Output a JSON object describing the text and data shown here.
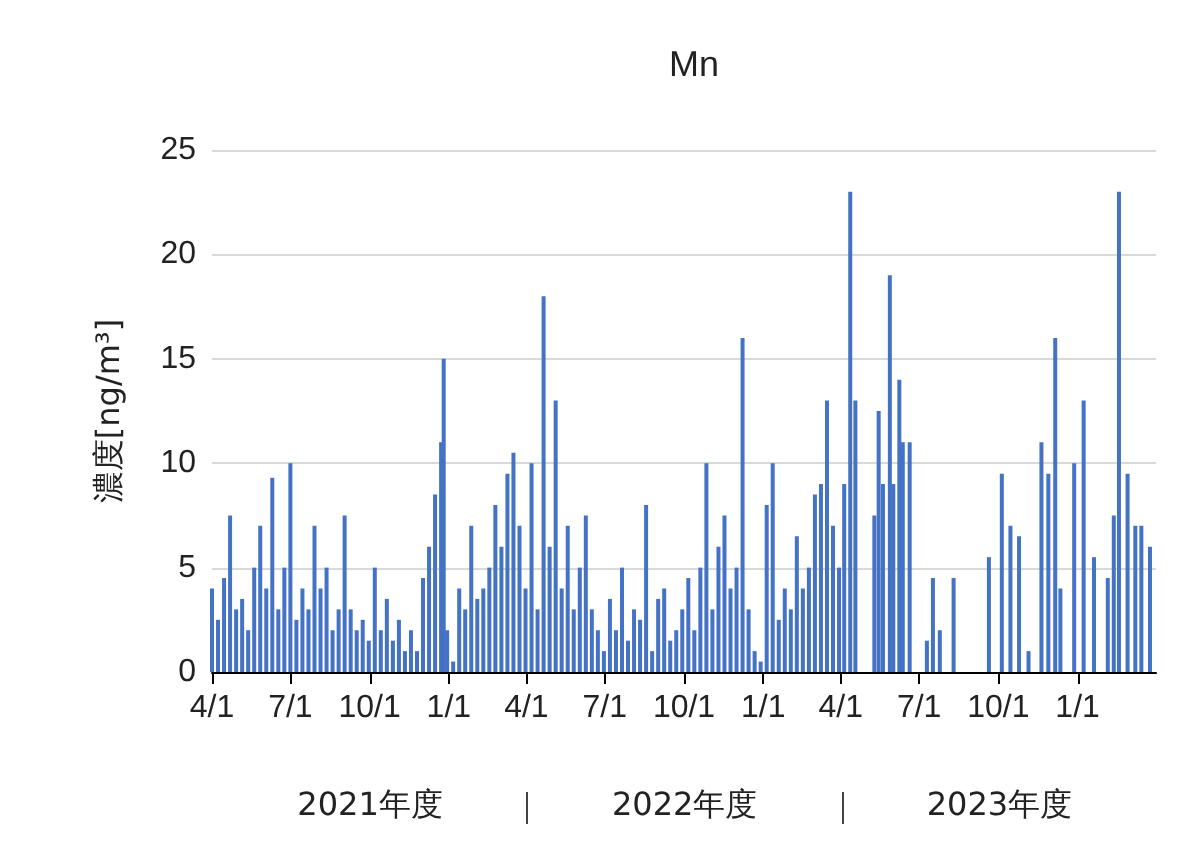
{
  "chart_data": {
    "type": "bar",
    "title": "Mn",
    "ylabel": "濃度[ng/m³]",
    "color": "#4472c4",
    "grid": "y",
    "ylim": [
      0,
      25
    ],
    "yticks": [
      0,
      5,
      10,
      15,
      20,
      25
    ],
    "xlim": [
      "2021-04-01",
      "2024-04-01"
    ],
    "xticks": [
      {
        "value": "2021-04-01",
        "label": "4/1"
      },
      {
        "value": "2021-07-01",
        "label": "7/1"
      },
      {
        "value": "2021-10-01",
        "label": "10/1"
      },
      {
        "value": "2022-01-01",
        "label": "1/1"
      },
      {
        "value": "2022-04-01",
        "label": "4/1"
      },
      {
        "value": "2022-07-01",
        "label": "7/1"
      },
      {
        "value": "2022-10-01",
        "label": "10/1"
      },
      {
        "value": "2023-01-01",
        "label": "1/1"
      },
      {
        "value": "2023-04-01",
        "label": "4/1"
      },
      {
        "value": "2023-07-01",
        "label": "7/1"
      },
      {
        "value": "2023-10-01",
        "label": "10/1"
      },
      {
        "value": "2024-01-01",
        "label": "1/1"
      }
    ],
    "annotations": [
      "2021年度",
      "2022年度",
      "2023年度"
    ],
    "x": [
      "2021-04-01",
      "2021-04-08",
      "2021-04-15",
      "2021-04-22",
      "2021-04-29",
      "2021-05-06",
      "2021-05-13",
      "2021-05-20",
      "2021-05-27",
      "2021-06-03",
      "2021-06-10",
      "2021-06-17",
      "2021-06-24",
      "2021-07-01",
      "2021-07-08",
      "2021-07-15",
      "2021-07-22",
      "2021-07-29",
      "2021-08-05",
      "2021-08-12",
      "2021-08-19",
      "2021-08-26",
      "2021-09-02",
      "2021-09-09",
      "2021-09-16",
      "2021-09-23",
      "2021-09-30",
      "2021-10-07",
      "2021-10-14",
      "2021-10-21",
      "2021-10-28",
      "2021-11-04",
      "2021-11-11",
      "2021-11-18",
      "2021-11-25",
      "2021-12-02",
      "2021-12-09",
      "2021-12-16",
      "2021-12-23",
      "2021-12-26",
      "2021-12-30",
      "2022-01-06",
      "2022-01-13",
      "2022-01-20",
      "2022-01-27",
      "2022-02-03",
      "2022-02-10",
      "2022-02-17",
      "2022-02-24",
      "2022-03-03",
      "2022-03-10",
      "2022-03-17",
      "2022-03-24",
      "2022-03-31",
      "2022-04-07",
      "2022-04-14",
      "2022-04-21",
      "2022-04-28",
      "2022-05-05",
      "2022-05-12",
      "2022-05-19",
      "2022-05-26",
      "2022-06-02",
      "2022-06-09",
      "2022-06-16",
      "2022-06-23",
      "2022-06-30",
      "2022-07-07",
      "2022-07-14",
      "2022-07-21",
      "2022-07-28",
      "2022-08-04",
      "2022-08-11",
      "2022-08-18",
      "2022-08-25",
      "2022-09-01",
      "2022-09-08",
      "2022-09-15",
      "2022-09-22",
      "2022-09-29",
      "2022-10-06",
      "2022-10-13",
      "2022-10-20",
      "2022-10-27",
      "2022-11-03",
      "2022-11-10",
      "2022-11-17",
      "2022-11-24",
      "2022-12-01",
      "2022-12-08",
      "2022-12-15",
      "2022-12-22",
      "2022-12-29",
      "2023-01-05",
      "2023-01-12",
      "2023-01-19",
      "2023-01-26",
      "2023-02-02",
      "2023-02-09",
      "2023-02-16",
      "2023-02-23",
      "2023-03-02",
      "2023-03-09",
      "2023-03-16",
      "2023-03-23",
      "2023-03-30",
      "2023-04-05",
      "2023-04-12",
      "2023-04-18",
      "2023-05-10",
      "2023-05-15",
      "2023-05-20",
      "2023-05-28",
      "2023-06-01",
      "2023-06-08",
      "2023-06-12",
      "2023-06-20",
      "2023-07-10",
      "2023-07-17",
      "2023-07-25",
      "2023-08-10",
      "2023-09-20",
      "2023-10-05",
      "2023-10-15",
      "2023-10-25",
      "2023-11-05",
      "2023-11-20",
      "2023-11-28",
      "2023-12-06",
      "2023-12-12",
      "2023-12-28",
      "2024-01-08",
      "2024-01-20",
      "2024-02-05",
      "2024-02-12",
      "2024-02-18",
      "2024-02-28",
      "2024-03-08",
      "2024-03-15",
      "2024-03-25"
    ],
    "values": [
      4,
      2.5,
      4.5,
      7.5,
      3,
      3.5,
      2,
      5,
      7,
      4,
      9.3,
      3,
      5,
      10,
      2.5,
      4,
      3,
      7,
      4,
      5,
      2,
      3,
      7.5,
      3,
      2,
      2.5,
      1.5,
      5,
      2,
      3.5,
      1.5,
      2.5,
      1,
      2,
      1,
      4.5,
      6,
      8.5,
      11,
      15,
      2,
      0.5,
      4,
      3,
      7,
      3.5,
      4,
      5,
      8,
      6,
      9.5,
      10.5,
      7,
      4,
      10,
      3,
      18,
      6,
      13,
      4,
      7,
      3,
      5,
      7.5,
      3,
      2,
      1,
      3.5,
      2,
      5,
      1.5,
      3,
      2.5,
      8,
      1,
      3.5,
      4,
      1.5,
      2,
      3,
      4.5,
      2,
      5,
      10,
      3,
      6,
      7.5,
      4,
      5,
      16,
      3,
      1,
      0.5,
      8,
      10,
      2.5,
      4,
      3,
      6.5,
      4,
      5,
      8.5,
      9,
      13,
      7,
      5,
      9,
      23,
      13,
      7.5,
      12.5,
      9,
      19,
      9,
      14,
      11,
      11,
      1.5,
      4.5,
      2,
      4.5,
      5.5,
      9.5,
      7,
      6.5,
      1,
      11,
      9.5,
      16,
      4,
      10,
      13,
      5.5,
      4.5,
      7.5,
      23,
      9.5,
      7,
      7,
      6
    ]
  }
}
